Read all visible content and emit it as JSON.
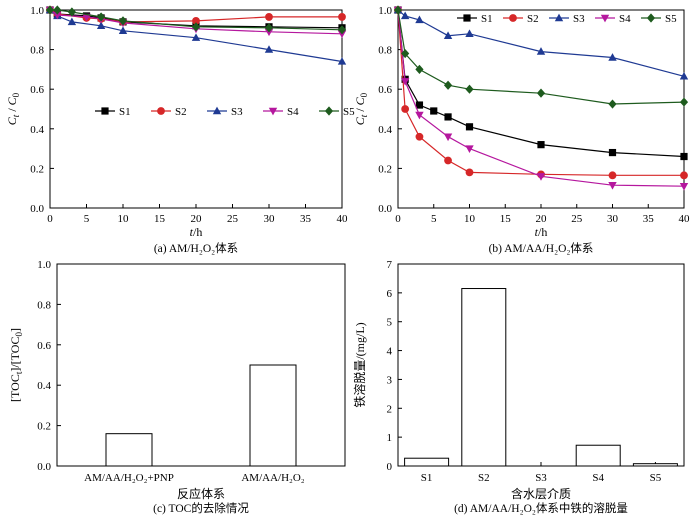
{
  "chart_data": [
    {
      "id": "a",
      "type": "line",
      "caption": "(a)  AM/H₂O₂体系",
      "xlabel": "t/h",
      "ylabel": "Ct/C0",
      "xlim": [
        0,
        40
      ],
      "ylim": [
        0,
        1.0
      ],
      "xticks": [
        0,
        5,
        10,
        15,
        20,
        25,
        30,
        35,
        40
      ],
      "yticks": [
        0,
        0.2,
        0.4,
        0.6,
        0.8,
        1.0
      ],
      "legend_position": "middle",
      "series": [
        {
          "name": "S1",
          "color": "#000000",
          "marker": "square",
          "x": [
            0,
            1,
            5,
            7,
            10,
            20,
            30,
            40
          ],
          "y": [
            1.0,
            0.98,
            0.97,
            0.96,
            0.94,
            0.92,
            0.915,
            0.91
          ]
        },
        {
          "name": "S2",
          "color": "#d62728",
          "marker": "circle",
          "x": [
            0,
            1,
            5,
            7,
            10,
            20,
            30,
            40
          ],
          "y": [
            1.0,
            0.98,
            0.96,
            0.955,
            0.94,
            0.945,
            0.965,
            0.965
          ]
        },
        {
          "name": "S3",
          "color": "#1f3a93",
          "marker": "triangle-up",
          "x": [
            0,
            1,
            3,
            7,
            10,
            20,
            30,
            40
          ],
          "y": [
            1.0,
            0.97,
            0.94,
            0.92,
            0.895,
            0.86,
            0.8,
            0.74
          ]
        },
        {
          "name": "S4",
          "color": "#b5179e",
          "marker": "triangle-down",
          "x": [
            0,
            1,
            5,
            7,
            10,
            20,
            30,
            40
          ],
          "y": [
            1.0,
            0.975,
            0.965,
            0.955,
            0.935,
            0.905,
            0.89,
            0.88
          ]
        },
        {
          "name": "S5",
          "color": "#1e5b1e",
          "marker": "diamond",
          "x": [
            0,
            1,
            3,
            7,
            10,
            20,
            30,
            40
          ],
          "y": [
            1.0,
            1.0,
            0.99,
            0.965,
            0.945,
            0.915,
            0.91,
            0.9
          ]
        }
      ]
    },
    {
      "id": "b",
      "type": "line",
      "caption": "(b)  AM/AA/H₂O₂体系",
      "xlabel": "t/h",
      "ylabel": "Ct/C0",
      "xlim": [
        0,
        40
      ],
      "ylim": [
        0,
        1.0
      ],
      "xticks": [
        0,
        5,
        10,
        15,
        20,
        25,
        30,
        35,
        40
      ],
      "yticks": [
        0,
        0.2,
        0.4,
        0.6,
        0.8,
        1.0
      ],
      "legend_position": "top",
      "series": [
        {
          "name": "S1",
          "color": "#000000",
          "marker": "square",
          "x": [
            0,
            1,
            3,
            5,
            7,
            10,
            20,
            30,
            40
          ],
          "y": [
            1.0,
            0.65,
            0.52,
            0.49,
            0.46,
            0.41,
            0.32,
            0.28,
            0.26
          ]
        },
        {
          "name": "S2",
          "color": "#d62728",
          "marker": "circle",
          "x": [
            0,
            1,
            3,
            7,
            10,
            20,
            30,
            40
          ],
          "y": [
            1.0,
            0.5,
            0.36,
            0.24,
            0.18,
            0.17,
            0.165,
            0.165
          ]
        },
        {
          "name": "S3",
          "color": "#1f3a93",
          "marker": "triangle-up",
          "x": [
            0,
            1,
            3,
            7,
            10,
            20,
            30,
            40
          ],
          "y": [
            1.0,
            0.97,
            0.95,
            0.87,
            0.88,
            0.79,
            0.76,
            0.665
          ]
        },
        {
          "name": "S4",
          "color": "#b5179e",
          "marker": "triangle-down",
          "x": [
            0,
            1,
            3,
            7,
            10,
            20,
            30,
            40
          ],
          "y": [
            1.0,
            0.64,
            0.47,
            0.36,
            0.3,
            0.16,
            0.115,
            0.11
          ]
        },
        {
          "name": "S5",
          "color": "#1e5b1e",
          "marker": "diamond",
          "x": [
            0,
            1,
            3,
            7,
            10,
            20,
            30,
            40
          ],
          "y": [
            1.0,
            0.78,
            0.7,
            0.62,
            0.6,
            0.58,
            0.525,
            0.535
          ]
        }
      ]
    },
    {
      "id": "c",
      "type": "bar",
      "caption": "(c)  TOC的去除情况",
      "xlabel": "反应体系",
      "ylabel": "[TOCt]/[TOC0]",
      "ylim": [
        0,
        1.0
      ],
      "yticks": [
        0,
        0.2,
        0.4,
        0.6,
        0.8,
        1.0
      ],
      "categories": [
        "AM/AA/H₂O₂+PNP",
        "AM/AA/H₂O₂"
      ],
      "values": [
        0.16,
        0.5
      ]
    },
    {
      "id": "d",
      "type": "bar",
      "caption": "(d)  AM/AA/H₂O₂体系中铁的溶脱量",
      "xlabel": "含水层介质",
      "ylabel": "铁溶脱量/(mg/L)",
      "ylim": [
        0,
        7
      ],
      "yticks": [
        0,
        1,
        2,
        3,
        4,
        5,
        6,
        7
      ],
      "categories": [
        "S1",
        "S2",
        "S3",
        "S4",
        "S5"
      ],
      "values": [
        0.27,
        6.15,
        0.0,
        0.72,
        0.08
      ]
    }
  ]
}
